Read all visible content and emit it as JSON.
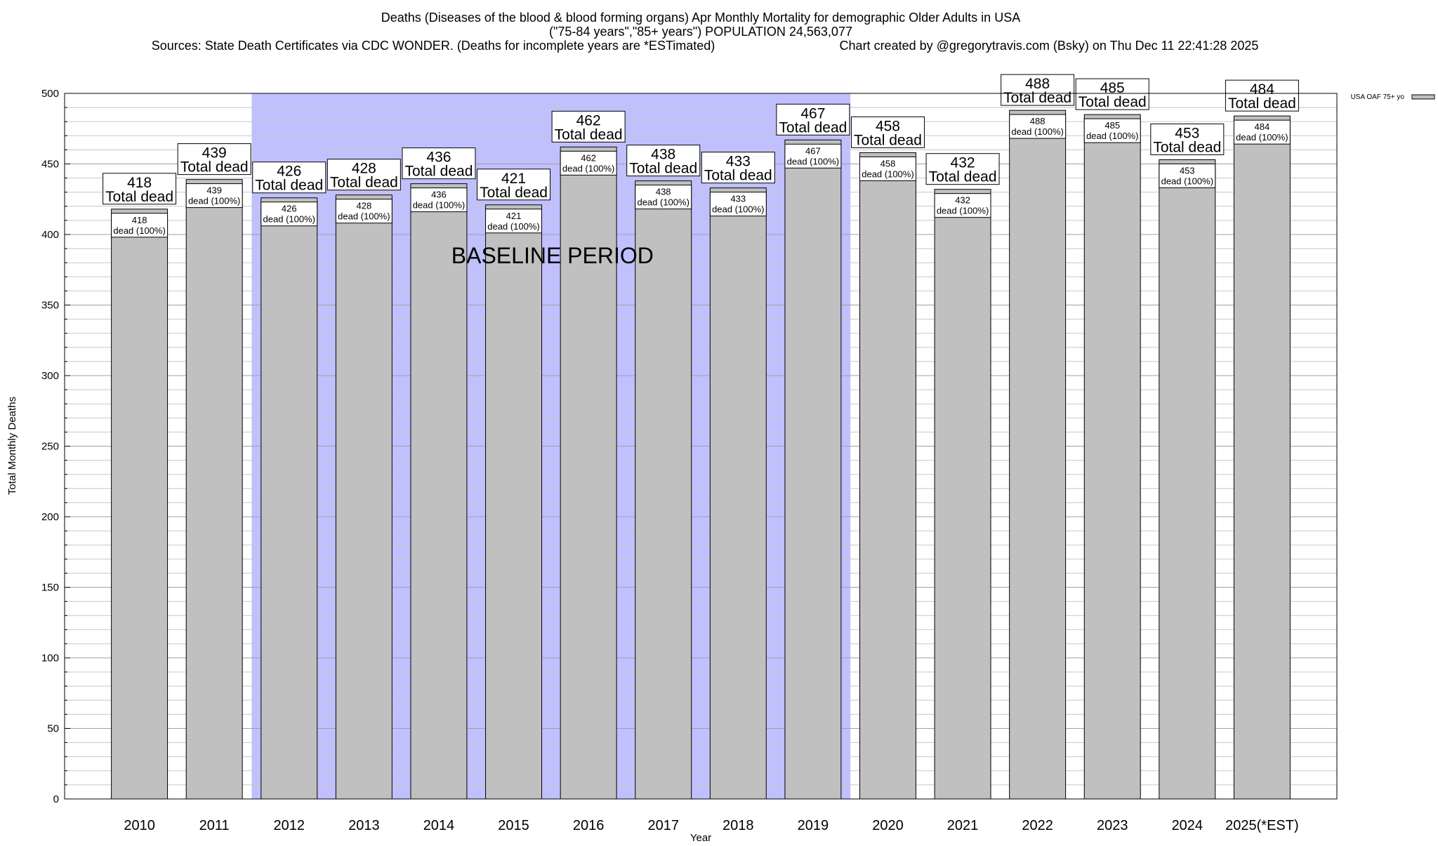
{
  "chart_data": {
    "type": "bar",
    "title_lines": [
      "Deaths (Diseases of the blood & blood forming organs) Apr Monthly Mortality for demographic Older Adults in USA",
      "(\"75-84 years\",\"85+ years\") POPULATION 24,563,077"
    ],
    "sources": "Sources: State Death Certificates via CDC WONDER. (Deaths for incomplete years are *ESTimated)",
    "credit": "Chart created by @gregorytravis.com (Bsky) on Thu Dec 11 22:41:28 2025",
    "xlabel": "Year",
    "ylabel": "Total Monthly Deaths",
    "ylim": [
      0,
      500
    ],
    "yticks": [
      0,
      50,
      100,
      150,
      200,
      250,
      300,
      350,
      400,
      450,
      500
    ],
    "grid": true,
    "categories": [
      "2010",
      "2011",
      "2012",
      "2013",
      "2014",
      "2015",
      "2016",
      "2017",
      "2018",
      "2019",
      "2020",
      "2021",
      "2022",
      "2023",
      "2024",
      "2025(*EST)"
    ],
    "series": [
      {
        "name": "USA OAF 75+ yo",
        "values": [
          418,
          439,
          426,
          428,
          436,
          421,
          462,
          438,
          433,
          467,
          458,
          432,
          488,
          485,
          453,
          484
        ],
        "color": "#c0c0c0"
      }
    ],
    "outer_label_suffix": "Total dead",
    "inner_label_suffix": "dead (100%)",
    "baseline": {
      "label": "BASELINE PERIOD",
      "from": "2012",
      "to": "2019",
      "color": "#c0c0ff"
    },
    "legend_placement": "top-right"
  }
}
